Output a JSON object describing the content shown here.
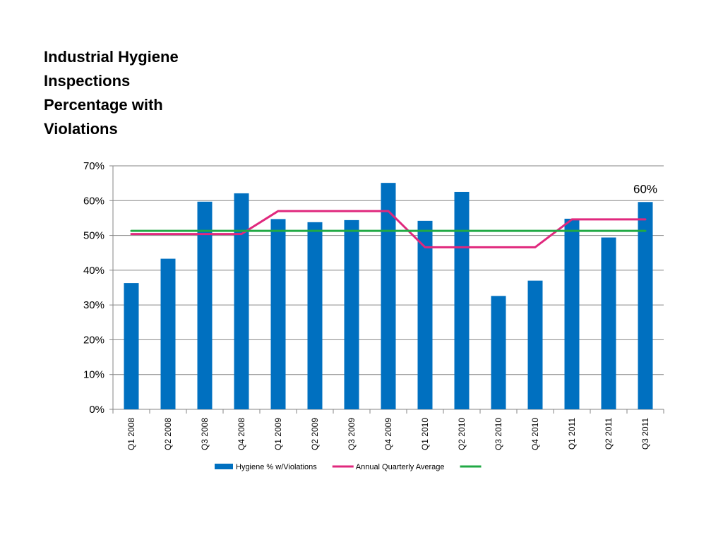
{
  "title_lines": [
    "Industrial Hygiene",
    "Inspections",
    "Percentage with",
    "Violations"
  ],
  "chart_data": {
    "type": "bar",
    "categories": [
      "Q1 2008",
      "Q2 2008",
      "Q3 2008",
      "Q4 2008",
      "Q1 2009",
      "Q2 2009",
      "Q3 2009",
      "Q4 2009",
      "Q1 2010",
      "Q2 2010",
      "Q3 2010",
      "Q4 2010",
      "Q1 2011",
      "Q2 2011",
      "Q3 2011"
    ],
    "y_ticks": [
      "0%",
      "10%",
      "20%",
      "30%",
      "40%",
      "50%",
      "60%",
      "70%"
    ],
    "ylim": [
      0,
      70
    ],
    "grid": true,
    "legend_position": "bottom",
    "series": [
      {
        "name": "Hygiene % w/Violations",
        "kind": "bar",
        "color": "#0070C0",
        "values": [
          36.3,
          43.3,
          59.7,
          62.1,
          54.7,
          53.8,
          54.4,
          65.1,
          54.2,
          62.5,
          32.6,
          37.0,
          54.8,
          49.4,
          59.6
        ]
      },
      {
        "name": "Annual Quarterly Average",
        "kind": "line",
        "color": "#E0287D",
        "values": [
          50.4,
          50.4,
          50.4,
          50.4,
          57.0,
          57.0,
          57.0,
          57.0,
          46.6,
          46.6,
          46.6,
          46.6,
          54.6,
          54.6,
          54.6
        ]
      },
      {
        "name": "",
        "kind": "line",
        "color": "#21A945",
        "values": [
          51.3,
          51.3,
          51.3,
          51.3,
          51.3,
          51.3,
          51.3,
          51.3,
          51.3,
          51.3,
          51.3,
          51.3,
          51.3,
          51.3,
          51.3
        ]
      }
    ],
    "annotations": [
      {
        "category": "Q3 2011",
        "text": "60%"
      }
    ]
  }
}
